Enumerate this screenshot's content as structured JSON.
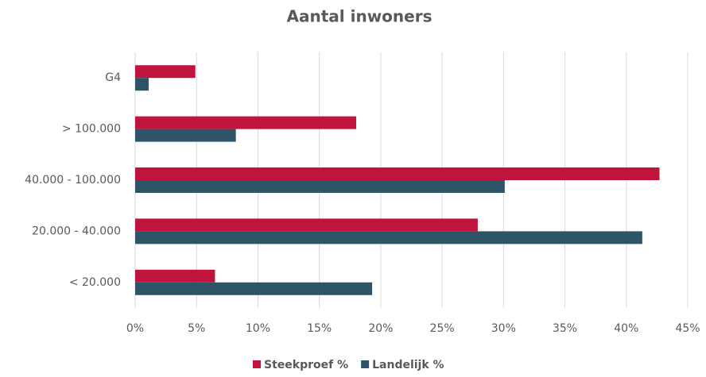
{
  "chart_data": {
    "type": "hbar",
    "title": "Aantal inwoners",
    "categories": [
      "G4",
      "> 100.000",
      "40.000 - 100.000",
      "20.000 - 40.000",
      "< 20.000"
    ],
    "series": [
      {
        "name": "Steekproef %",
        "color": "#c0143c",
        "values": [
          4.9,
          18.0,
          42.7,
          27.9,
          6.5
        ]
      },
      {
        "name": "Landelijk %",
        "color": "#2e5566",
        "values": [
          1.1,
          8.2,
          30.1,
          41.3,
          19.3
        ]
      }
    ],
    "xlim": [
      0,
      45
    ],
    "xticks": [
      {
        "value": 0,
        "label": "0%"
      },
      {
        "value": 5,
        "label": "5%"
      },
      {
        "value": 10,
        "label": "10%"
      },
      {
        "value": 15,
        "label": "15%"
      },
      {
        "value": 20,
        "label": "20%"
      },
      {
        "value": 25,
        "label": "25%"
      },
      {
        "value": 30,
        "label": "30%"
      },
      {
        "value": 35,
        "label": "35%"
      },
      {
        "value": 40,
        "label": "40%"
      },
      {
        "value": 45,
        "label": "45%"
      }
    ],
    "grid": true,
    "legend": "bottom"
  }
}
